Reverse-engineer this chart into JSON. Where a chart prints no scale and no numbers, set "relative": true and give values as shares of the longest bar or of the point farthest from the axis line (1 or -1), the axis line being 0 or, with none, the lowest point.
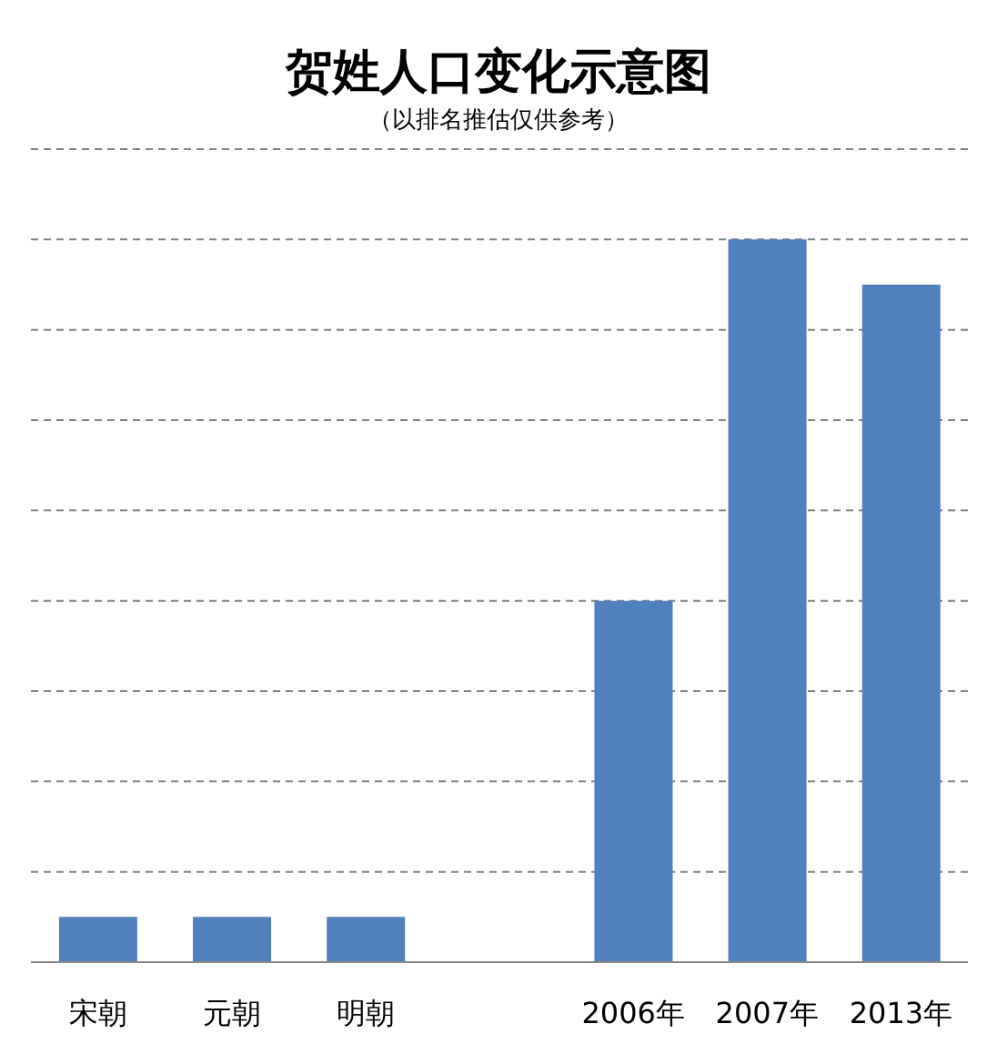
{
  "chart_data": {
    "type": "bar",
    "title": "贺姓人口变化示意图",
    "subtitle": "（以排名推估仅供参考）",
    "categories": [
      "宋朝",
      "元朝",
      "明朝",
      null,
      "2006年",
      "2007年",
      "2013年"
    ],
    "values": [
      0.0625,
      0.0625,
      0.0625,
      null,
      0.5,
      1,
      0.9375
    ],
    "color": "#4f81bd",
    "relative": true,
    "grid": "y"
  }
}
